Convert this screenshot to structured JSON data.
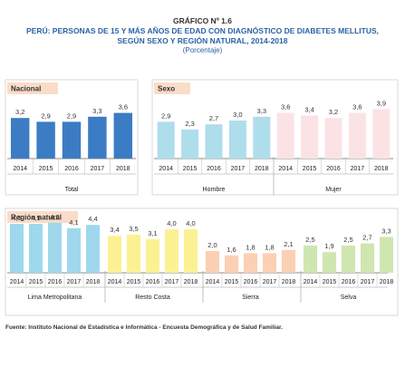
{
  "header": {
    "grafico": "GRÁFICO Nº 1.6",
    "title_line1": "PERÚ: PERSONAS DE 15 Y MÁS AÑOS DE EDAD CON DIAGNÓSTICO DE DIABETES MELLITUS,",
    "title_line2": "SEGÚN SEXO Y REGIÓN NATURAL, 2014-2018",
    "subtitle": "(Porcentaje)"
  },
  "source": "Fuente: Instituto Nacional de Estadística e Informática - Encuesta Demográfica y de Salud Familiar.",
  "chart_data": {
    "type": "bar",
    "years": [
      "2014",
      "2015",
      "2016",
      "2017",
      "2018"
    ],
    "ylim": [
      0,
      5
    ],
    "panels": [
      {
        "label": "Nacional",
        "label_color": "#fadcc8",
        "groups": [
          {
            "name": "Total",
            "color": "#3b7cc4",
            "values": [
              3.2,
              2.9,
              2.9,
              3.3,
              3.6
            ],
            "labels": [
              "3,2",
              "2,9",
              "2,9",
              "3,3",
              "3,6"
            ]
          }
        ]
      },
      {
        "label": "Sexo",
        "label_color": "#fadcc8",
        "groups": [
          {
            "name": "Hombre",
            "color": "#aeddec",
            "values": [
              2.9,
              2.3,
              2.7,
              3.0,
              3.3
            ],
            "labels": [
              "2,9",
              "2,3",
              "2,7",
              "3,0",
              "3,3"
            ]
          },
          {
            "name": "Mujer",
            "color": "#fbe3e5",
            "values": [
              3.6,
              3.4,
              3.2,
              3.6,
              3.9
            ],
            "labels": [
              "3,6",
              "3,4",
              "3,2",
              "3,6",
              "3,9"
            ]
          }
        ]
      },
      {
        "label": "Región natural",
        "label_color": "#fadcc8",
        "groups": [
          {
            "name": "Lima Metropolitana",
            "color": "#9fd8ec",
            "values": [
              4.5,
              4.5,
              4.6,
              4.1,
              4.4
            ],
            "labels": [
              "4,5",
              "4,5",
              "4,6",
              "4,1",
              "4,4"
            ]
          },
          {
            "name": "Resto Costa",
            "color": "#fbf193",
            "values": [
              3.4,
              3.5,
              3.1,
              4.0,
              4.0
            ],
            "labels": [
              "3,4",
              "3,5",
              "3,1",
              "4,0",
              "4,0"
            ]
          },
          {
            "name": "Sierra",
            "color": "#fbd0b4",
            "values": [
              2.0,
              1.6,
              1.8,
              1.8,
              2.1
            ],
            "labels": [
              "2,0",
              "1,6",
              "1,8",
              "1,8",
              "2,1"
            ]
          },
          {
            "name": "Selva",
            "color": "#cfe6b0",
            "values": [
              2.5,
              1.9,
              2.5,
              2.7,
              3.3
            ],
            "labels": [
              "2,5",
              "1,9",
              "2,5",
              "2,7",
              "3,3"
            ]
          }
        ]
      }
    ]
  }
}
